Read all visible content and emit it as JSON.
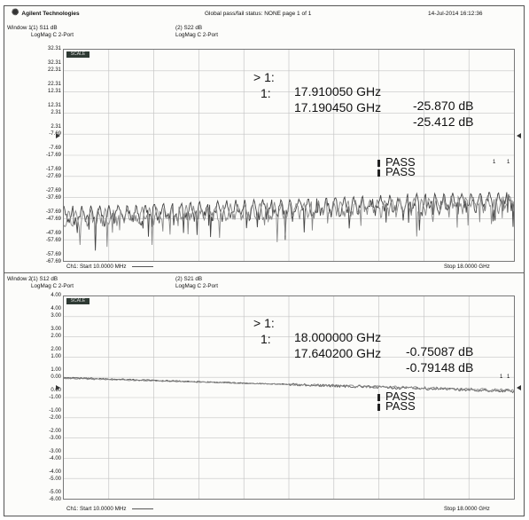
{
  "header": {
    "brand": "Agilent Technologies",
    "status": "Global pass/fail status: NONE   page 1 of 1",
    "datetime": "14-Jul-2014  16:12:36"
  },
  "window1": {
    "title": "Window 1",
    "trace1": {
      "name": "(1) S11 dB",
      "format": "LogMag C  2-Port"
    },
    "trace2": {
      "name": "(2) S22 dB",
      "format": "LogMag C  2-Port"
    },
    "badge": "SCALE",
    "y_labels": [
      "32.31",
      "32.31",
      "22.31",
      "22.31",
      "12.31",
      "12.31",
      "2.31",
      "2.31",
      "-7.69",
      "-7.69",
      "-17.69",
      "-17.69",
      "-27.69",
      "-27.69",
      "-37.69",
      "-37.69",
      "-47.69",
      "-47.69",
      "-57.69",
      "-57.69",
      "-67.69"
    ],
    "markers": [
      {
        "label": "> 1:",
        "freq": "17.910050 GHz",
        "value": "-25.870 dB"
      },
      {
        "label": "1:",
        "freq": "17.190450 GHz",
        "value": "-25.412 dB"
      }
    ],
    "pass": [
      "PASS",
      "PASS"
    ],
    "peak_labels": [
      "1",
      "1"
    ],
    "start": "Ch1: Start  10.0000 MHz",
    "stop": "Stop  18.0000 GHz"
  },
  "window2": {
    "title": "Window 2",
    "trace1": {
      "name": "(1) S12 dB",
      "format": "LogMag C  2-Port"
    },
    "trace2": {
      "name": "(2) S21 dB",
      "format": "LogMag C  2-Port"
    },
    "badge": "SCALE",
    "y_labels": [
      "4.00",
      "4.00",
      "3.00",
      "3.00",
      "2.00",
      "2.00",
      "1.00",
      "1.00",
      "0.00",
      "0.00",
      "-1.00",
      "-1.00",
      "-2.00",
      "-2.00",
      "-3.00",
      "-3.00",
      "-4.00",
      "-4.00",
      "-5.00",
      "-5.00",
      "-6.00"
    ],
    "markers": [
      {
        "label": "> 1:",
        "freq": "18.000000 GHz",
        "value": "-0.75087 dB"
      },
      {
        "label": "1:",
        "freq": "17.640200 GHz",
        "value": "-0.79148 dB"
      }
    ],
    "pass": [
      "PASS",
      "PASS"
    ],
    "peak_labels": [
      "1",
      "1"
    ],
    "start": "Ch1: Start  10.0000 MHz",
    "stop": "Stop  18.0000 GHz"
  }
}
